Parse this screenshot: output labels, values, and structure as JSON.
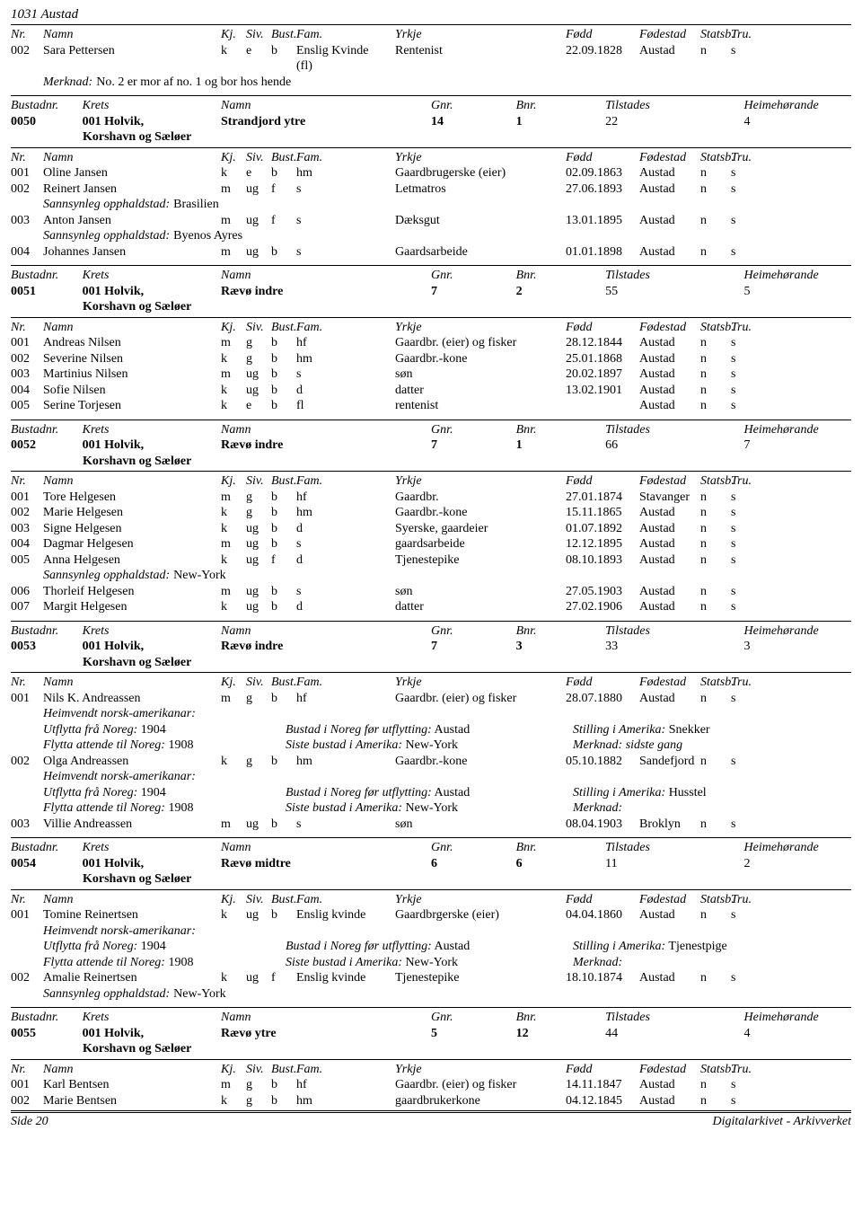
{
  "page_title": "1031 Austad",
  "footer": {
    "left": "Side 20",
    "right": "Digitalarkivet - Arkivverket"
  },
  "headers": {
    "bustad": {
      "bustadnr": "Bustadnr.",
      "krets": "Krets",
      "namn": "Namn",
      "gnr": "Gnr.",
      "bnr": "Bnr.",
      "tilstades": "Tilstades",
      "heime": "Heimehørande"
    },
    "person": {
      "nr": "Nr.",
      "namn": "Namn",
      "kj": "Kj.",
      "siv": "Siv.",
      "bust": "Bust.",
      "fam": "Fam.",
      "yrkje": "Yrkje",
      "fodd": "Fødd",
      "fodestad": "Fødestad",
      "statsb": "Statsb.",
      "tru": "Tru."
    }
  },
  "labels": {
    "merknad": "Merknad:",
    "sannsynleg": "Sannsynleg opphaldstad:",
    "heimvendt": "Heimvendt norsk-amerikanar:",
    "utflytta": "Utflytta frå Noreg:",
    "bustad_for": "Bustad i Noreg før utflytting:",
    "stilling": "Stilling i Amerika:",
    "flytta_attende": "Flytta attende til Noreg:",
    "siste_bustad": "Siste bustad i Amerika:",
    "merknad_short": "Merknad:"
  },
  "pre_section": {
    "person": {
      "nr": "002",
      "namn": "Sara Pettersen",
      "kj": "k",
      "siv": "e",
      "bust": "b",
      "fam1": "Enslig Kvinde",
      "fam2": "(fl)",
      "yrkje": "Rentenist",
      "fodd": "22.09.1828",
      "fodestad": "Austad",
      "statsb": "n",
      "tru": "s"
    },
    "merknad_text": "No. 2 er mor af no. 1 og bor hos hende"
  },
  "sections": [
    {
      "bustad": {
        "nr": "0050",
        "krets": "001 Holvik, Korshavn og Sæløer",
        "namn": "Strandjord ytre",
        "gnr": "14",
        "bnr": "1",
        "tilstades": "22",
        "heime": "4"
      },
      "people": [
        {
          "nr": "001",
          "namn": "Oline Jansen",
          "kj": "k",
          "siv": "e",
          "bust": "b",
          "fam": "hm",
          "yrkje": "Gaardbrugerske (eier)",
          "fodd": "02.09.1863",
          "fodestad": "Austad",
          "statsb": "n",
          "tru": "s"
        },
        {
          "nr": "002",
          "namn": "Reinert Jansen",
          "kj": "m",
          "siv": "ug",
          "bust": "f",
          "fam": "s",
          "yrkje": "Letmatros",
          "fodd": "27.06.1893",
          "fodestad": "Austad",
          "statsb": "n",
          "tru": "s",
          "opphald": "Brasilien"
        },
        {
          "nr": "003",
          "namn": "Anton Jansen",
          "kj": "m",
          "siv": "ug",
          "bust": "f",
          "fam": "s",
          "yrkje": "Dæksgut",
          "fodd": "13.01.1895",
          "fodestad": "Austad",
          "statsb": "n",
          "tru": "s",
          "opphald": "Byenos Ayres"
        },
        {
          "nr": "004",
          "namn": "Johannes Jansen",
          "kj": "m",
          "siv": "ug",
          "bust": "b",
          "fam": "s",
          "yrkje": "Gaardsarbeide",
          "fodd": "01.01.1898",
          "fodestad": "Austad",
          "statsb": "n",
          "tru": "s"
        }
      ]
    },
    {
      "bustad": {
        "nr": "0051",
        "krets": "001 Holvik, Korshavn og Sæløer",
        "namn": "Rævø indre",
        "gnr": "7",
        "bnr": "2",
        "tilstades": "55",
        "heime": "5"
      },
      "people": [
        {
          "nr": "001",
          "namn": "Andreas Nilsen",
          "kj": "m",
          "siv": "g",
          "bust": "b",
          "fam": "hf",
          "yrkje": "Gaardbr. (eier) og fisker",
          "fodd": "28.12.1844",
          "fodestad": "Austad",
          "statsb": "n",
          "tru": "s"
        },
        {
          "nr": "002",
          "namn": "Severine Nilsen",
          "kj": "k",
          "siv": "g",
          "bust": "b",
          "fam": "hm",
          "yrkje": "Gaardbr.-kone",
          "fodd": "25.01.1868",
          "fodestad": "Austad",
          "statsb": "n",
          "tru": "s"
        },
        {
          "nr": "003",
          "namn": "Martinius Nilsen",
          "kj": "m",
          "siv": "ug",
          "bust": "b",
          "fam": "s",
          "yrkje": "søn",
          "fodd": "20.02.1897",
          "fodestad": "Austad",
          "statsb": "n",
          "tru": "s"
        },
        {
          "nr": "004",
          "namn": "Sofie Nilsen",
          "kj": "k",
          "siv": "ug",
          "bust": "b",
          "fam": "d",
          "yrkje": "datter",
          "fodd": "13.02.1901",
          "fodestad": "Austad",
          "statsb": "n",
          "tru": "s"
        },
        {
          "nr": "005",
          "namn": "Serine Torjesen",
          "kj": "k",
          "siv": "e",
          "bust": "b",
          "fam": "fl",
          "yrkje": "rentenist",
          "fodd": "",
          "fodestad": "Austad",
          "statsb": "n",
          "tru": "s"
        }
      ]
    },
    {
      "bustad": {
        "nr": "0052",
        "krets": "001 Holvik, Korshavn og Sæløer",
        "namn": "Rævø indre",
        "gnr": "7",
        "bnr": "1",
        "tilstades": "66",
        "heime": "7"
      },
      "people": [
        {
          "nr": "001",
          "namn": "Tore Helgesen",
          "kj": "m",
          "siv": "g",
          "bust": "b",
          "fam": "hf",
          "yrkje": "Gaardbr.",
          "fodd": "27.01.1874",
          "fodestad": "Stavanger",
          "statsb": "n",
          "tru": "s"
        },
        {
          "nr": "002",
          "namn": "Marie Helgesen",
          "kj": "k",
          "siv": "g",
          "bust": "b",
          "fam": "hm",
          "yrkje": "Gaardbr.-kone",
          "fodd": "15.11.1865",
          "fodestad": "Austad",
          "statsb": "n",
          "tru": "s"
        },
        {
          "nr": "003",
          "namn": "Signe Helgesen",
          "kj": "k",
          "siv": "ug",
          "bust": "b",
          "fam": "d",
          "yrkje": "Syerske, gaardeier",
          "fodd": "01.07.1892",
          "fodestad": "Austad",
          "statsb": "n",
          "tru": "s"
        },
        {
          "nr": "004",
          "namn": "Dagmar Helgesen",
          "kj": "m",
          "siv": "ug",
          "bust": "b",
          "fam": "s",
          "yrkje": "gaardsarbeide",
          "fodd": "12.12.1895",
          "fodestad": "Austad",
          "statsb": "n",
          "tru": "s"
        },
        {
          "nr": "005",
          "namn": "Anna Helgesen",
          "kj": "k",
          "siv": "ug",
          "bust": "f",
          "fam": "d",
          "yrkje": "Tjenestepike",
          "fodd": "08.10.1893",
          "fodestad": "Austad",
          "statsb": "n",
          "tru": "s",
          "opphald": "New-York"
        },
        {
          "nr": "006",
          "namn": "Thorleif Helgesen",
          "kj": "m",
          "siv": "ug",
          "bust": "b",
          "fam": "s",
          "yrkje": "søn",
          "fodd": "27.05.1903",
          "fodestad": "Austad",
          "statsb": "n",
          "tru": "s"
        },
        {
          "nr": "007",
          "namn": "Margit Helgesen",
          "kj": "k",
          "siv": "ug",
          "bust": "b",
          "fam": "d",
          "yrkje": "datter",
          "fodd": "27.02.1906",
          "fodestad": "Austad",
          "statsb": "n",
          "tru": "s"
        }
      ]
    },
    {
      "bustad": {
        "nr": "0053",
        "krets": "001 Holvik, Korshavn og Sæløer",
        "namn": "Rævø indre",
        "gnr": "7",
        "bnr": "3",
        "tilstades": "33",
        "heime": "3"
      },
      "people": [
        {
          "nr": "001",
          "namn": "Nils K. Andreassen",
          "kj": "m",
          "siv": "g",
          "bust": "b",
          "fam": "hf",
          "yrkje": "Gaardbr. (eier) og fisker",
          "fodd": "28.07.1880",
          "fodestad": "Austad",
          "statsb": "n",
          "tru": "s",
          "heimvendt": true,
          "utflytta": "1904",
          "bustad_for": "Austad",
          "stilling": "Snekker",
          "flytta_attende": "1908",
          "siste_bustad": "New-York",
          "merknad_tail": "Merknad: sidste gang"
        },
        {
          "nr": "002",
          "namn": "Olga Andreassen",
          "kj": "k",
          "siv": "g",
          "bust": "b",
          "fam": "hm",
          "yrkje": "Gaardbr.-kone",
          "fodd": "05.10.1882",
          "fodestad": "Sandefjord",
          "statsb": "n",
          "tru": "s",
          "heimvendt": true,
          "utflytta": "1904",
          "bustad_for": "Austad",
          "stilling": "Husstel",
          "flytta_attende": "1908",
          "siste_bustad": "New-York",
          "merknad_tail": ""
        },
        {
          "nr": "003",
          "namn": "Villie Andreassen",
          "kj": "m",
          "siv": "ug",
          "bust": "b",
          "fam": "s",
          "yrkje": "søn",
          "fodd": "08.04.1903",
          "fodestad": "Broklyn",
          "statsb": "n",
          "tru": "s"
        }
      ]
    },
    {
      "bustad": {
        "nr": "0054",
        "krets": "001 Holvik, Korshavn og Sæløer",
        "namn": "Rævø midtre",
        "gnr": "6",
        "bnr": "6",
        "tilstades": "11",
        "heime": "2"
      },
      "people": [
        {
          "nr": "001",
          "namn": "Tomine Reinertsen",
          "kj": "k",
          "siv": "ug",
          "bust": "b",
          "fam": "Enslig kvinde",
          "yrkje": "Gaardbrgerske (eier)",
          "fodd": "04.04.1860",
          "fodestad": "Austad",
          "statsb": "n",
          "tru": "s",
          "heimvendt": true,
          "utflytta": "1904",
          "bustad_for": "Austad",
          "stilling": "Tjenestpige",
          "flytta_attende": "1908",
          "siste_bustad": "New-York",
          "merknad_tail": ""
        },
        {
          "nr": "002",
          "namn": "Amalie Reinertsen",
          "kj": "k",
          "siv": "ug",
          "bust": "f",
          "fam": "Enslig kvinde",
          "yrkje": "Tjenestepike",
          "fodd": "18.10.1874",
          "fodestad": "Austad",
          "statsb": "n",
          "tru": "s",
          "opphald": "New-York"
        }
      ]
    },
    {
      "bustad": {
        "nr": "0055",
        "krets": "001 Holvik, Korshavn og Sæløer",
        "namn": "Rævø ytre",
        "gnr": "5",
        "bnr": "12",
        "tilstades": "44",
        "heime": "4"
      },
      "people": [
        {
          "nr": "001",
          "namn": "Karl Bentsen",
          "kj": "m",
          "siv": "g",
          "bust": "b",
          "fam": "hf",
          "yrkje": "Gaardbr. (eier) og fisker",
          "fodd": "14.11.1847",
          "fodestad": "Austad",
          "statsb": "n",
          "tru": "s"
        },
        {
          "nr": "002",
          "namn": "Marie Bentsen",
          "kj": "k",
          "siv": "g",
          "bust": "b",
          "fam": "hm",
          "yrkje": "gaardbrukerkone",
          "fodd": "04.12.1845",
          "fodestad": "Austad",
          "statsb": "n",
          "tru": "s"
        }
      ]
    }
  ]
}
